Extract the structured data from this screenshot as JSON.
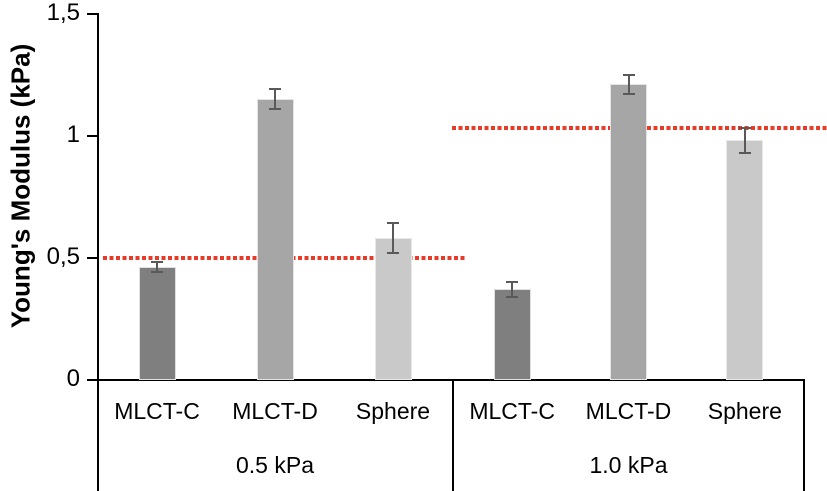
{
  "chart_data": {
    "type": "bar",
    "title": "",
    "xlabel": "",
    "ylabel": "Young's Modulus (kPa)",
    "ylim": [
      0,
      1.5
    ],
    "grid": false,
    "legend": false,
    "yticks": [
      {
        "value": 0,
        "label": "0"
      },
      {
        "value": 0.5,
        "label": "0,5"
      },
      {
        "value": 1,
        "label": "1"
      },
      {
        "value": 1.5,
        "label": "1,5"
      }
    ],
    "categories": [
      "MLCT-C",
      "MLCT-D",
      "Sphere"
    ],
    "groups": [
      {
        "label": "0.5 kPa",
        "values": [
          0.46,
          1.15,
          0.58
        ],
        "errors": [
          0.02,
          0.04,
          0.06
        ],
        "reference_line": 0.5
      },
      {
        "label": "1.0 kPa",
        "values": [
          0.37,
          1.21,
          0.98
        ],
        "errors": [
          0.03,
          0.04,
          0.05
        ],
        "reference_line": 1.03
      }
    ],
    "colors": {
      "bars": [
        "#7f7f7f",
        "#a6a6a6",
        "#c9c9c9"
      ],
      "error_bar": "#595959",
      "reference_line": "#e73b28",
      "axis": "#000000"
    }
  }
}
